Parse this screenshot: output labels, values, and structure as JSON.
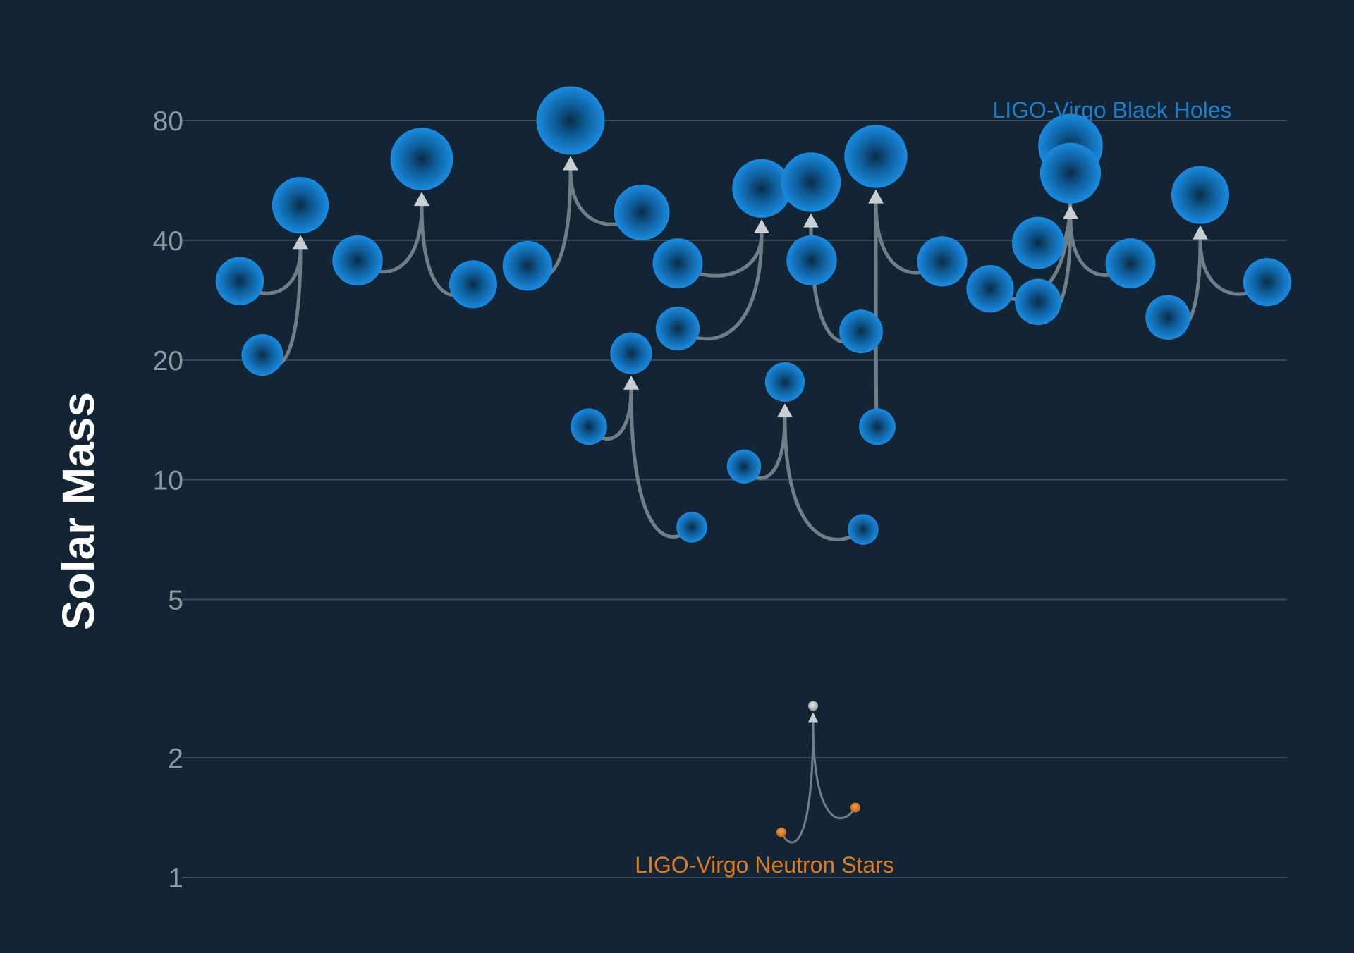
{
  "chart_data": {
    "type": "scatter",
    "ylabel": "Solar Mass",
    "yscale": "log",
    "ylim": [
      1,
      100
    ],
    "yticks": [
      1,
      2,
      5,
      10,
      20,
      40,
      80
    ],
    "annotations": {
      "black_holes": "LIGO-Virgo Black Holes",
      "neutron_stars": "LIGO-Virgo Neutron Stars"
    },
    "colors": {
      "background": "#132534",
      "black_hole": "#1580d4",
      "neutron_star": "#e07a1e",
      "remnant_neutron_star": "#c9c9c9",
      "merger_curve": "#6f7e89"
    },
    "mergers": [
      {
        "kind": "bh",
        "primary": 31.6,
        "secondary": 20.6,
        "final": 49.0
      },
      {
        "kind": "bh",
        "primary": 35.6,
        "secondary": 31.0,
        "final": 64.0
      },
      {
        "kind": "bh",
        "primary": 34.5,
        "secondary": 47.0,
        "final": 80.0
      },
      {
        "kind": "bh",
        "primary": 13.6,
        "secondary": 7.6,
        "final": 20.8
      },
      {
        "kind": "bh",
        "primary": 35.0,
        "secondary": 24.0,
        "final": 54.0
      },
      {
        "kind": "bh",
        "primary": 10.8,
        "secondary": 7.5,
        "final": 17.6
      },
      {
        "kind": "bh",
        "primary": 35.6,
        "secondary": 23.6,
        "final": 56.0
      },
      {
        "kind": "bh",
        "primary": 13.6,
        "secondary": 35.4,
        "final": 65.0
      },
      {
        "kind": "bh",
        "primary": 39.4,
        "secondary": 30.2,
        "final": 69.0
      },
      {
        "kind": "bh",
        "primary": 28.0,
        "secondary": 35.0,
        "final": 59.0
      },
      {
        "kind": "bh",
        "primary": 25.6,
        "secondary": 31.4,
        "final": 52.0
      },
      {
        "kind": "ns",
        "primary": 1.3,
        "secondary": 1.5,
        "final": 2.7
      }
    ]
  }
}
